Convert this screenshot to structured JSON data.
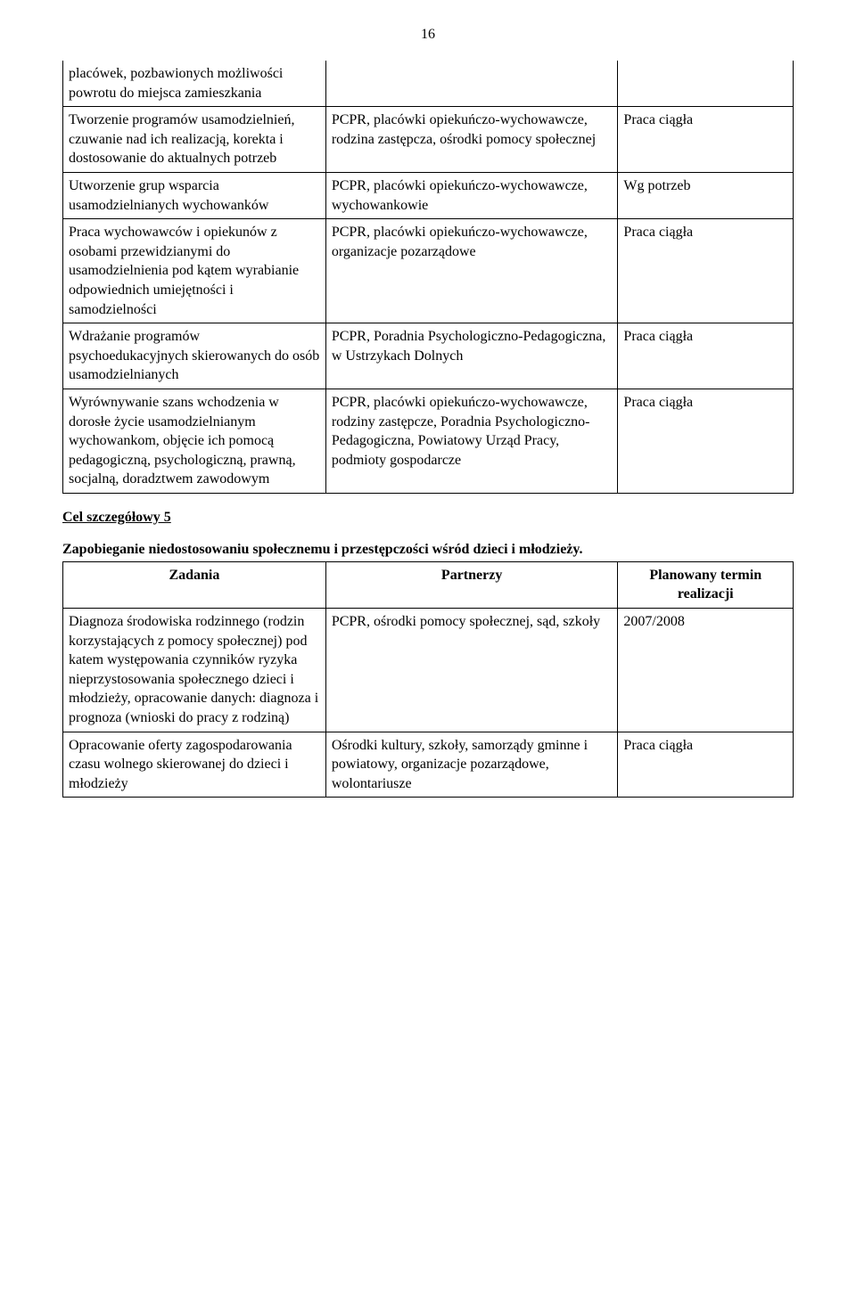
{
  "page_number": "16",
  "table1": {
    "rows": [
      {
        "col1": "placówek, pozbawionych możliwości powrotu do miejsca zamieszkania",
        "col2": "",
        "col3": ""
      },
      {
        "col1": "Tworzenie programów usamodzielnień, czuwanie nad ich realizacją, korekta i dostosowanie do aktualnych potrzeb",
        "col2": "PCPR, placówki opiekuńczo-wychowawcze, rodzina zastępcza, ośrodki pomocy społecznej",
        "col3": "Praca ciągła"
      },
      {
        "col1": "Utworzenie grup wsparcia usamodzielnianych wychowanków",
        "col2": "PCPR, placówki opiekuńczo-wychowawcze, wychowankowie",
        "col3": "Wg potrzeb"
      },
      {
        "col1": "Praca wychowawców i opiekunów  z osobami przewidzianymi do usamodzielnienia pod kątem wyrabianie odpowiednich umiejętności i samodzielności",
        "col2": "PCPR, placówki opiekuńczo-wychowawcze, organizacje pozarządowe",
        "col3": "Praca ciągła"
      },
      {
        "col1": "Wdrażanie programów psychoedukacyjnych skierowanych do osób usamodzielnianych",
        "col2": "PCPR,  Poradnia Psychologiczno-Pedagogiczna,\nw Ustrzykach Dolnych",
        "col3": "Praca ciągła"
      },
      {
        "col1": "Wyrównywanie szans wchodzenia w dorosłe życie usamodzielnianym wychowankom, objęcie ich pomocą pedagogiczną, psychologiczną, prawną, socjalną, doradztwem zawodowym",
        "col2": "PCPR, placówki opiekuńczo-wychowawcze, rodziny zastępcze, Poradnia Psychologiczno-Pedagogiczna, Powiatowy Urząd Pracy, podmioty gospodarcze",
        "col3": "Praca ciągła"
      }
    ]
  },
  "cel_heading": "Cel szczegółowy 5",
  "cel_title": "Zapobieganie niedostosowaniu społecznemu i przestępczości wśród dzieci i młodzieży.",
  "table2": {
    "headers": {
      "col1": "Zadania",
      "col2": "Partnerzy",
      "col3": "Planowany termin realizacji"
    },
    "rows": [
      {
        "col1": "Diagnoza środowiska rodzinnego (rodzin korzystających z pomocy społecznej) pod katem występowania czynników ryzyka nieprzystosowania społecznego dzieci i młodzieży, opracowanie danych: diagnoza i prognoza (wnioski do pracy z rodziną)",
        "col2": "PCPR, ośrodki pomocy społecznej, sąd, szkoły",
        "col3": "2007/2008"
      },
      {
        "col1": "Opracowanie oferty zagospodarowania czasu wolnego skierowanej do dzieci i młodzieży",
        "col2": "Ośrodki kultury, szkoły, samorządy gminne i powiatowy, organizacje pozarządowe, wolontariusze",
        "col3": "Praca ciągła"
      }
    ]
  }
}
